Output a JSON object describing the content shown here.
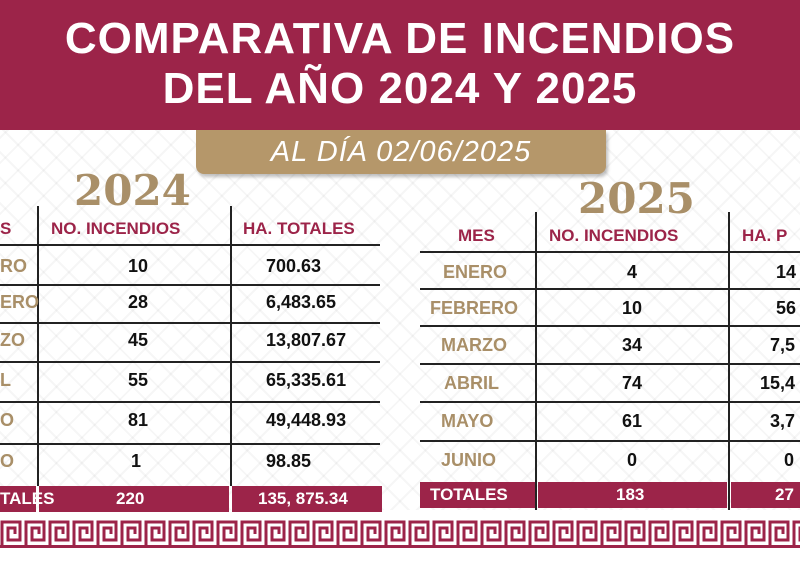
{
  "header": {
    "title_line1": "COMPARATIVA DE INCENDIOS",
    "title_line2": "DEL AÑO 2024 Y 2025",
    "date_label": "AL DÍA 02/06/2025"
  },
  "colors": {
    "maroon": "#9c2449",
    "gold": "#b5976a",
    "gold_text": "#a98f68"
  },
  "table_2024": {
    "year": "2024",
    "col_mes": "S",
    "col_incendios": "NO. INCENDIOS",
    "col_ha": "HA. TOTALES",
    "rows": [
      {
        "mes": "RO",
        "incendios": "10",
        "ha": "700.63"
      },
      {
        "mes": "ERO",
        "incendios": "28",
        "ha": "6,483.65"
      },
      {
        "mes": "ZO",
        "incendios": "45",
        "ha": "13,807.67"
      },
      {
        "mes": "L",
        "incendios": "55",
        "ha": "65,335.61"
      },
      {
        "mes": "O",
        "incendios": "81",
        "ha": "49,448.93"
      },
      {
        "mes": "O",
        "incendios": "1",
        "ha": "98.85"
      }
    ],
    "totals": {
      "label": "TALES",
      "incendios": "220",
      "ha": "135, 875.34"
    }
  },
  "table_2025": {
    "year": "2025",
    "col_mes": "MES",
    "col_incendios": "NO. INCENDIOS",
    "col_ha": "HA. P",
    "rows": [
      {
        "mes": "ENERO",
        "incendios": "4",
        "ha": "14"
      },
      {
        "mes": "FEBRERO",
        "incendios": "10",
        "ha": "56"
      },
      {
        "mes": "MARZO",
        "incendios": "34",
        "ha": "7,5"
      },
      {
        "mes": "ABRIL",
        "incendios": "74",
        "ha": "15,4"
      },
      {
        "mes": "MAYO",
        "incendios": "61",
        "ha": "3,7"
      },
      {
        "mes": "JUNIO",
        "incendios": "0",
        "ha": "0"
      }
    ],
    "totals": {
      "label": "TOTALES",
      "incendios": "183",
      "ha": "27"
    }
  }
}
